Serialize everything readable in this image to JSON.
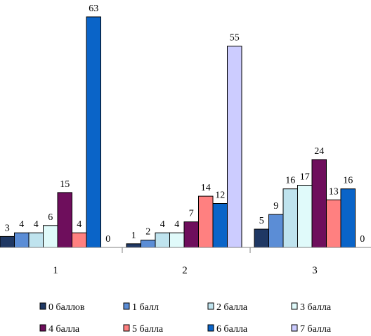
{
  "chart_data": {
    "type": "bar",
    "title": "",
    "xlabel": "",
    "ylabel": "",
    "categories": [
      "1",
      "2",
      "3"
    ],
    "ylim": [
      0,
      65
    ],
    "grid": false,
    "legend_position": "bottom",
    "series": [
      {
        "name": "0 баллов",
        "color": "#1F3864",
        "values": [
          3,
          1,
          5
        ]
      },
      {
        "name": "1 балл",
        "color": "#5B8DD6",
        "values": [
          4,
          2,
          9
        ]
      },
      {
        "name": "2 балла",
        "color": "#BFE3EE",
        "values": [
          4,
          4,
          16
        ]
      },
      {
        "name": "3 балла",
        "color": "#E0FAFA",
        "values": [
          6,
          4,
          17
        ]
      },
      {
        "name": "4 балла",
        "color": "#6E0E5C",
        "values": [
          15,
          7,
          24
        ]
      },
      {
        "name": "5 балла",
        "color": "#FF8080",
        "values": [
          4,
          14,
          13
        ]
      },
      {
        "name": "6 балла",
        "color": "#0A64C8",
        "values": [
          63,
          12,
          16
        ]
      },
      {
        "name": "7 балла",
        "color": "#CCCCFF",
        "values": [
          0,
          55,
          0
        ]
      }
    ]
  }
}
